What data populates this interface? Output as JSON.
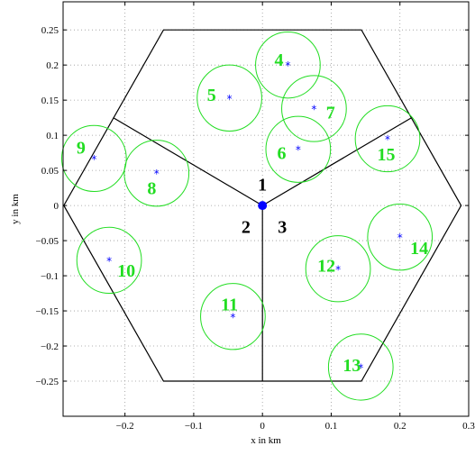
{
  "chart_data": {
    "type": "scatter",
    "xlabel": "x in km",
    "ylabel": "y in km",
    "xlim": [
      -0.29,
      0.3
    ],
    "ylim": [
      -0.3,
      0.29
    ],
    "grid": true,
    "x_ticks": [
      -0.2,
      -0.1,
      0,
      0.1,
      0.2,
      0.3
    ],
    "x_tick_labels": [
      "−0.2",
      "−0.1",
      "0",
      "0.1",
      "0.2",
      "0.3"
    ],
    "y_ticks": [
      0.25,
      0.2,
      0.15,
      0.1,
      0.05,
      0,
      -0.05,
      -0.1,
      -0.15,
      -0.2,
      -0.25
    ],
    "y_tick_labels": [
      "0.25",
      "0.2",
      "0.15",
      "0.1",
      "0.05",
      "0",
      "−0.05",
      "−0.1",
      "−0.15",
      "−0.2",
      "−0.25"
    ],
    "hexagon": [
      [
        0.289,
        0
      ],
      [
        0.144,
        0.25
      ],
      [
        -0.144,
        0.25
      ],
      [
        -0.289,
        0
      ],
      [
        -0.144,
        -0.25
      ],
      [
        0.144,
        -0.25
      ]
    ],
    "sector_boundaries": [
      [
        [
          0,
          0
        ],
        [
          0.217,
          0.125
        ]
      ],
      [
        [
          0,
          0
        ],
        [
          -0.217,
          0.125
        ]
      ],
      [
        [
          0,
          0
        ],
        [
          0,
          -0.25
        ]
      ]
    ],
    "base_station": {
      "x": 0,
      "y": 0,
      "color": "#0000ff"
    },
    "sector_labels": [
      {
        "text": "1",
        "x": 0.0,
        "y": 0.03
      },
      {
        "text": "2",
        "x": -0.024,
        "y": -0.03
      },
      {
        "text": "3",
        "x": 0.029,
        "y": -0.03
      }
    ],
    "hotspot_radius": 0.047,
    "hotspots": [
      {
        "id": "4",
        "x": 0.037,
        "y": 0.2,
        "label_x": 0.024,
        "label_y": 0.208
      },
      {
        "id": "5",
        "x": -0.048,
        "y": 0.153,
        "label_x": -0.074,
        "label_y": 0.158
      },
      {
        "id": "6",
        "x": 0.052,
        "y": 0.08,
        "label_x": 0.028,
        "label_y": 0.075
      },
      {
        "id": "7",
        "x": 0.075,
        "y": 0.138,
        "label_x": 0.099,
        "label_y": 0.133
      },
      {
        "id": "8",
        "x": -0.154,
        "y": 0.046,
        "label_x": -0.161,
        "label_y": 0.025
      },
      {
        "id": "9",
        "x": -0.245,
        "y": 0.067,
        "label_x": -0.264,
        "label_y": 0.083
      },
      {
        "id": "10",
        "x": -0.223,
        "y": -0.078,
        "label_x": -0.198,
        "label_y": -0.092
      },
      {
        "id": "11",
        "x": -0.043,
        "y": -0.158,
        "label_x": -0.048,
        "label_y": -0.14
      },
      {
        "id": "12",
        "x": 0.11,
        "y": -0.09,
        "label_x": 0.093,
        "label_y": -0.085
      },
      {
        "id": "13",
        "x": 0.143,
        "y": -0.23,
        "label_x": 0.13,
        "label_y": -0.227
      },
      {
        "id": "14",
        "x": 0.2,
        "y": -0.045,
        "label_x": 0.228,
        "label_y": -0.06
      },
      {
        "id": "15",
        "x": 0.182,
        "y": 0.095,
        "label_x": 0.18,
        "label_y": 0.073
      }
    ],
    "circle_color": "#22dd22",
    "point_color": "#0000ff",
    "line_color": "#000000"
  }
}
